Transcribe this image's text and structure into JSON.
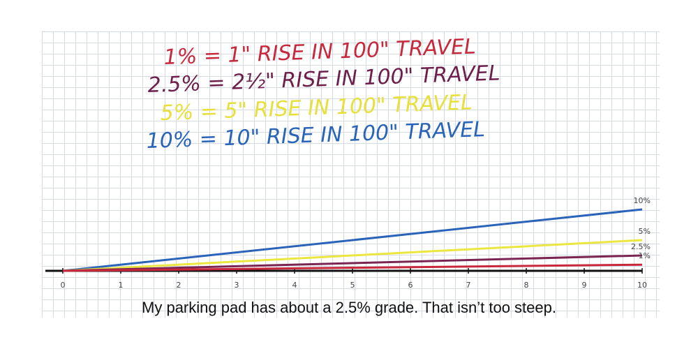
{
  "chart_data": {
    "type": "line",
    "annotations": [
      {
        "text": "1% = 1\" RISE IN 100\" TRAVEL",
        "color": "#c8283c"
      },
      {
        "text": "2.5% = 2½\" RISE IN 100\" TRAVEL",
        "color": "#6e1e4a"
      },
      {
        "text": "5% = 5\" RISE IN 100\" TRAVEL",
        "color": "#e8e03a"
      },
      {
        "text": "10% = 10\" RISE IN 100\" TRAVEL",
        "color": "#2a64b8"
      }
    ],
    "x": [
      0,
      10
    ],
    "series": [
      {
        "name": "10%",
        "color": "#2a64b8",
        "values": [
          0,
          10
        ]
      },
      {
        "name": "5%",
        "color": "#ece640",
        "values": [
          0,
          5
        ]
      },
      {
        "name": "2.5%",
        "color": "#7a2552",
        "values": [
          0,
          2.5
        ]
      },
      {
        "name": "1%",
        "color": "#c8283c",
        "values": [
          0,
          1
        ]
      }
    ],
    "xlim": [
      0,
      10
    ],
    "xticks": [
      0,
      1,
      2,
      3,
      4,
      5,
      6,
      7,
      8,
      9,
      10
    ],
    "ylim": [
      0,
      10
    ],
    "caption": "My parking pad has about a 2.5% grade. That isn’t too steep."
  }
}
